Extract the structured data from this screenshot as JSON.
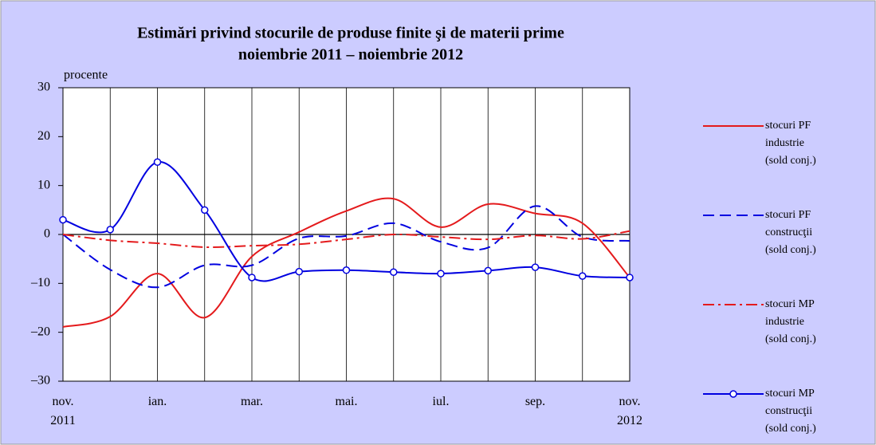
{
  "chart_data": {
    "type": "line",
    "title": "Estimări privind stocurile de produse finite şi de materii prime",
    "subtitle": "noiembrie 2011 – noiembrie 2012",
    "y_label": "procente",
    "categories": [
      "nov.\n2011",
      null,
      "ian.",
      null,
      "mar.",
      null,
      "mai.",
      null,
      "iul.",
      null,
      "sep.",
      null,
      "nov.\n2012"
    ],
    "ylim": [
      -30,
      30
    ],
    "yticks": [
      {
        "value": -30,
        "label": "–30"
      },
      {
        "value": -20,
        "label": "–20"
      },
      {
        "value": -10,
        "label": "–10"
      },
      0,
      10,
      20,
      30
    ],
    "grid": true,
    "legend": "right",
    "series": [
      {
        "name": "stocuri PF\nindustrie\n(sold conj.)",
        "color": "#e41a1c",
        "line_style": "solid",
        "marker": "none",
        "values": [
          -18.9,
          -16.8,
          -8,
          -17,
          -4.5,
          0.5,
          4.8,
          7.3,
          1.5,
          6.2,
          4.3,
          2.3,
          -8.8
        ]
      },
      {
        "name": "stocuri PF\nconstrucţii\n(sold conj.)",
        "color": "#0000e0",
        "line_style": "dashed",
        "marker": "none",
        "values": [
          0,
          -7.2,
          -10.8,
          -6.3,
          -6.3,
          -0.8,
          -0.3,
          2.3,
          -1.5,
          -2.7,
          5.8,
          -0.5,
          -1.3
        ]
      },
      {
        "name": "stocuri MP\nindustrie\n(sold conj.)",
        "color": "#e41a1c",
        "line_style": "dashdot",
        "marker": "none",
        "values": [
          0,
          -1.2,
          -1.8,
          -2.6,
          -2.3,
          -2.0,
          -1.0,
          0,
          -0.5,
          -1.0,
          -0.2,
          -0.9,
          0.7
        ]
      },
      {
        "name": "stocuri MP\nconstrucţii\n(sold conj.)",
        "color": "#0000e0",
        "line_style": "solid",
        "marker": "circle",
        "values": [
          3,
          1,
          14.8,
          5,
          -8.8,
          -7.6,
          -7.3,
          -7.7,
          -8.0,
          -7.4,
          -6.7,
          -8.5,
          -8.8
        ]
      }
    ]
  }
}
